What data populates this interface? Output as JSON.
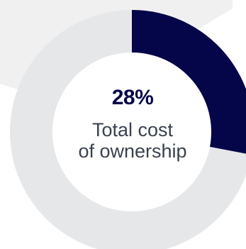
{
  "colors": {
    "accent": "#050549",
    "track": "#e6e7e9",
    "panel": "#f0f0f1",
    "text": "#3a4250"
  },
  "chart_data": {
    "type": "pie",
    "title": "",
    "slices": [
      {
        "label": "Total cost of ownership",
        "value": 28
      },
      {
        "label": "",
        "value": 72
      }
    ],
    "center_value": "28%",
    "center_caption_line1": "Total cost",
    "center_caption_line2": "of ownership"
  }
}
